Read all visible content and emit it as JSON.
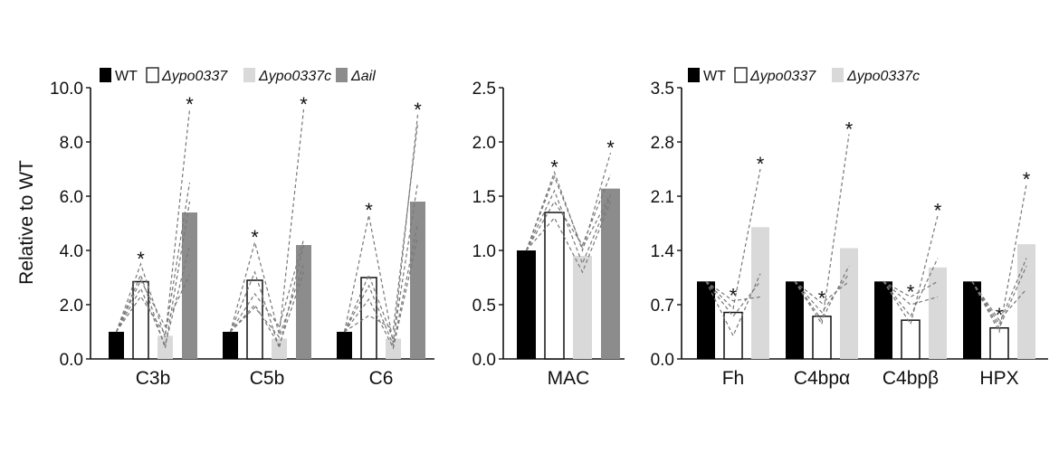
{
  "y_axis_label": "Relative to WT",
  "colors": {
    "WT": "#000000",
    "ypo0337": "#ffffff",
    "ypo0337c": "#d9d9d9",
    "ail": "#8c8c8c",
    "pair_line": "#777777"
  },
  "chart_data": [
    {
      "type": "bar",
      "ylim": [
        0,
        10
      ],
      "yticks": [
        "0.0",
        "2.0",
        "4.0",
        "6.0",
        "8.0",
        "10.0"
      ],
      "categories": [
        "C3b",
        "C5b",
        "C6"
      ],
      "legend": [
        {
          "key": "WT",
          "label": "WT",
          "italic": false
        },
        {
          "key": "ypo0337",
          "label": "Δypo0337",
          "italic": true
        },
        {
          "key": "ypo0337c",
          "label": "Δypo0337c",
          "italic": true
        },
        {
          "key": "ail",
          "label": "Δail",
          "italic": true
        }
      ],
      "series": [
        {
          "key": "WT",
          "values": [
            1.0,
            1.0,
            1.0
          ]
        },
        {
          "key": "ypo0337",
          "values": [
            2.85,
            2.9,
            3.0
          ]
        },
        {
          "key": "ypo0337c",
          "values": [
            0.85,
            0.75,
            0.75
          ]
        },
        {
          "key": "ail",
          "values": [
            5.4,
            4.2,
            5.8
          ]
        }
      ],
      "replicates": [
        [
          [
            1,
            2.6,
            0.5,
            4.2
          ],
          [
            1,
            3.5,
            0.8,
            9.2
          ],
          [
            1,
            3.1,
            0.4,
            5.8
          ],
          [
            1,
            2.3,
            0.9,
            6.5
          ],
          [
            1,
            2.9,
            1.2,
            3.1
          ]
        ],
        [
          [
            1,
            2.0,
            0.5,
            3.2
          ],
          [
            1,
            4.3,
            0.9,
            9.2
          ],
          [
            1,
            3.2,
            0.4,
            4.2
          ],
          [
            1,
            1.9,
            0.8,
            3.5
          ],
          [
            1,
            2.4,
            1.2,
            4.4
          ]
        ],
        [
          [
            1,
            2.2,
            0.4,
            4.5
          ],
          [
            1,
            5.3,
            0.6,
            9.0
          ],
          [
            1,
            3.1,
            0.7,
            6.5
          ],
          [
            1,
            1.6,
            1.1,
            8.7
          ],
          [
            1,
            2.7,
            0.5,
            5.0
          ]
        ]
      ],
      "stars": [
        [
          false,
          true,
          false,
          true
        ],
        [
          false,
          true,
          false,
          true
        ],
        [
          false,
          true,
          false,
          true
        ]
      ]
    },
    {
      "type": "bar",
      "ylim": [
        0,
        2.5
      ],
      "yticks": [
        "0.0",
        "0.5",
        "1.0",
        "1.5",
        "2.0",
        "2.5"
      ],
      "categories": [
        "MAC"
      ],
      "legend": [],
      "series": [
        {
          "key": "WT",
          "values": [
            1.0
          ]
        },
        {
          "key": "ypo0337",
          "values": [
            1.35
          ]
        },
        {
          "key": "ypo0337c",
          "values": [
            0.95
          ]
        },
        {
          "key": "ail",
          "values": [
            1.57
          ]
        }
      ],
      "replicates": [
        [
          [
            1,
            1.72,
            1.0,
            1.9
          ],
          [
            1,
            1.55,
            0.88,
            1.5
          ],
          [
            1,
            1.45,
            1.05,
            1.7
          ],
          [
            1,
            1.3,
            0.8,
            1.45
          ],
          [
            1,
            1.68,
            1.02,
            1.52
          ]
        ]
      ],
      "stars": [
        [
          false,
          true,
          false,
          true
        ]
      ]
    },
    {
      "type": "bar",
      "ylim": [
        0,
        3.5
      ],
      "yticks": [
        "0.0",
        "0.7",
        "1.4",
        "2.1",
        "2.8",
        "3.5"
      ],
      "categories": [
        "Fh",
        "C4bpα",
        "C4bpβ",
        "HPX"
      ],
      "legend": [
        {
          "key": "WT",
          "label": "WT",
          "italic": false
        },
        {
          "key": "ypo0337",
          "label": "Δypo0337",
          "italic": true
        },
        {
          "key": "ypo0337c",
          "label": "Δypo0337c",
          "italic": true
        }
      ],
      "series": [
        {
          "key": "WT",
          "values": [
            1.0,
            1.0,
            1.0,
            1.0
          ]
        },
        {
          "key": "ypo0337",
          "values": [
            0.6,
            0.55,
            0.5,
            0.4
          ]
        },
        {
          "key": "ypo0337c",
          "values": [
            1.7,
            1.43,
            1.18,
            1.48
          ]
        }
      ],
      "replicates": [
        [
          [
            1,
            0.3,
            1.1
          ],
          [
            1,
            0.65,
            2.45
          ],
          [
            1,
            0.75,
            0.8
          ],
          [
            1,
            0.55,
            1.0
          ]
        ],
        [
          [
            1,
            0.45,
            2.9
          ],
          [
            1,
            0.5,
            1.2
          ],
          [
            1,
            0.72,
            1.0
          ],
          [
            1,
            0.6,
            1.1
          ]
        ],
        [
          [
            1,
            0.45,
            1.85
          ],
          [
            1,
            0.7,
            0.8
          ],
          [
            1,
            0.55,
            1.3
          ],
          [
            1,
            0.8,
            1.0
          ]
        ],
        [
          [
            1,
            0.35,
            2.25
          ],
          [
            1,
            0.4,
            1.2
          ],
          [
            1,
            0.5,
            0.9
          ],
          [
            1,
            0.45,
            1.3
          ]
        ]
      ],
      "stars": [
        [
          false,
          true,
          true
        ],
        [
          false,
          true,
          true
        ],
        [
          false,
          true,
          true
        ],
        [
          false,
          true,
          true
        ]
      ]
    }
  ]
}
